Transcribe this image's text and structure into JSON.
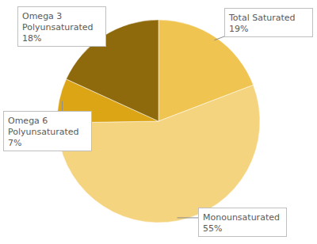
{
  "chart_data": {
    "type": "pie",
    "categories": [
      "Total Saturated",
      "Monounsaturated",
      "Omega 6 Polyunsaturated",
      "Omega 3 Polyunsaturated"
    ],
    "values": [
      19,
      55,
      7,
      18
    ],
    "value_labels": [
      "19%",
      "55%",
      "7%",
      "18%"
    ],
    "colors": [
      "#f0c451",
      "#f5d47f",
      "#dca516",
      "#8f6a0c"
    ],
    "data_labels": true
  }
}
